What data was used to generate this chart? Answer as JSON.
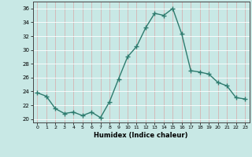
{
  "x": [
    0,
    1,
    2,
    3,
    4,
    5,
    6,
    7,
    8,
    9,
    10,
    11,
    12,
    13,
    14,
    15,
    16,
    17,
    18,
    19,
    20,
    21,
    22,
    23
  ],
  "y": [
    23.8,
    23.3,
    21.5,
    20.8,
    21.0,
    20.5,
    21.0,
    20.2,
    22.5,
    25.8,
    29.0,
    30.5,
    33.2,
    35.3,
    35.0,
    36.0,
    32.3,
    27.0,
    26.8,
    26.5,
    25.3,
    24.8,
    23.1,
    22.9
  ],
  "line_color": "#2e7b6e",
  "marker": "+",
  "marker_size": 4,
  "bg_color": "#c8e8e5",
  "grid_color_h": "#ffffff",
  "grid_color_v": "#d8a8a8",
  "xlabel": "Humidex (Indice chaleur)",
  "ylim": [
    19.5,
    37
  ],
  "xlim": [
    -0.5,
    23.5
  ],
  "yticks": [
    20,
    22,
    24,
    26,
    28,
    30,
    32,
    34,
    36
  ],
  "xticks": [
    0,
    1,
    2,
    3,
    4,
    5,
    6,
    7,
    8,
    9,
    10,
    11,
    12,
    13,
    14,
    15,
    16,
    17,
    18,
    19,
    20,
    21,
    22,
    23
  ]
}
